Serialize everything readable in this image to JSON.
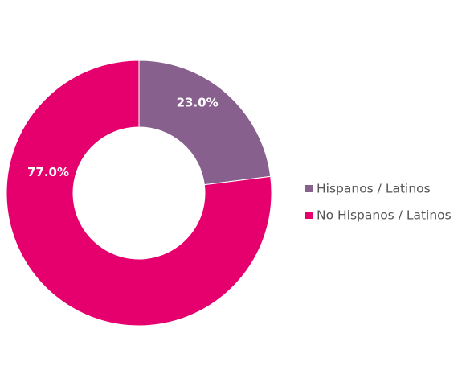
{
  "chart_data": {
    "type": "pie",
    "variant": "donut",
    "title": "",
    "slices": [
      {
        "label": "Hispanos / Latinos",
        "value": 23.0,
        "display": "23.0%",
        "color": "#88608E"
      },
      {
        "label": "No Hispanos / Latinos",
        "value": 77.0,
        "display": "77.0%",
        "color": "#E5006E"
      }
    ],
    "legend": {
      "placement": "right"
    }
  }
}
